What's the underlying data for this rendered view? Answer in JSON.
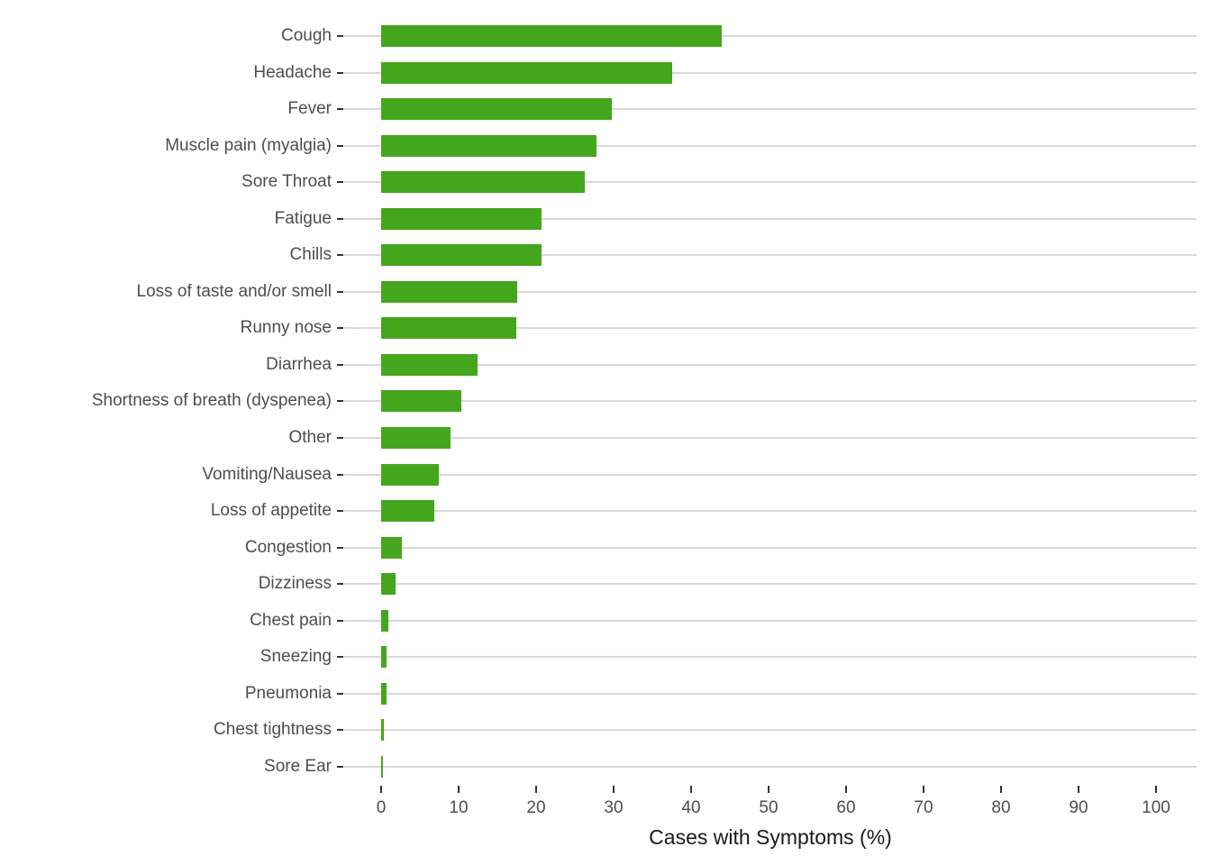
{
  "chart_data": {
    "type": "bar",
    "orientation": "horizontal",
    "title": "",
    "xlabel": "Cases with Symptoms (%)",
    "ylabel": "",
    "categories": [
      "Cough",
      "Headache",
      "Fever",
      "Muscle pain (myalgia)",
      "Sore Throat",
      "Fatigue",
      "Chills",
      "Loss of taste and/or smell",
      "Runny nose",
      "Diarrhea",
      "Shortness of breath (dyspenea)",
      "Other",
      "Vomiting/Nausea",
      "Loss of appetite",
      "Congestion",
      "Dizziness",
      "Chest pain",
      "Sneezing",
      "Pneumonia",
      "Chest tightness",
      "Sore Ear"
    ],
    "values": [
      44.0,
      37.5,
      29.8,
      27.8,
      26.3,
      20.7,
      20.7,
      17.6,
      17.4,
      12.4,
      10.4,
      9.0,
      7.4,
      6.9,
      2.7,
      1.9,
      0.9,
      0.75,
      0.7,
      0.4,
      0.2
    ],
    "x_ticks": [
      0,
      10,
      20,
      30,
      40,
      50,
      60,
      70,
      80,
      90,
      100
    ],
    "xlim": [
      0,
      100
    ],
    "grid": "horizontal-row-lines-only",
    "legend": "none",
    "bar_color": "#44a61d",
    "gridline_color": "#d8d8d8",
    "tick_color": "#333333",
    "axis_text_color": "#4d4d4d",
    "axis_title_color": "#1a1a1a",
    "background": "#ffffff"
  }
}
